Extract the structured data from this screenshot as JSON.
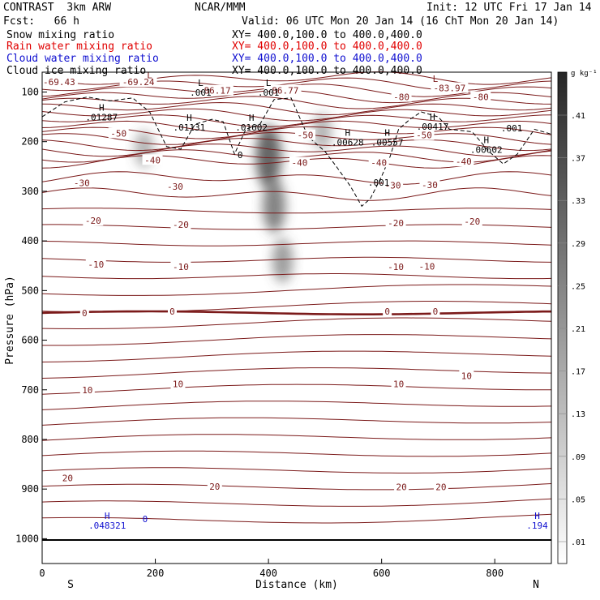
{
  "header": {
    "title": "CONTRAST  3km ARW",
    "center": "NCAR/MMM",
    "init": "Init: 12 UTC Fri 17 Jan 14",
    "fcst": "Fcst:   66 h",
    "valid": "Valid: 06 UTC Mon 20 Jan 14 (16 ChT Mon 20 Jan 14)",
    "fields": [
      {
        "label": "Snow mixing ratio",
        "xy": "XY= 400.0,100.0 to 400.0,400.0",
        "color": "#000000"
      },
      {
        "label": "Rain water mixing ratio",
        "xy": "XY= 400.0,100.0 to 400.0,400.0",
        "color": "#e00000"
      },
      {
        "label": "Cloud water mixing ratio",
        "xy": "XY= 400.0,100.0 to 400.0,400.0",
        "color": "#1010d0"
      },
      {
        "label": "Cloud ice mixing ratio",
        "xy": "XY= 400.0,100.0 to 400.0,400.0",
        "color": "#000000"
      }
    ]
  },
  "chart_data": {
    "type": "contour",
    "xlabel": "Distance (km)",
    "ylabel": "Pressure (hPa)",
    "xlim": [
      0,
      900
    ],
    "ylim": [
      1050,
      60
    ],
    "x_ticks": [
      0,
      200,
      400,
      600,
      800
    ],
    "y_ticks": [
      100,
      200,
      300,
      400,
      500,
      600,
      700,
      800,
      900,
      1000
    ],
    "x_end_labels": {
      "left": "S",
      "right": "N"
    },
    "colorbar": {
      "unit": "g kg⁻¹",
      "labels": [
        ".01",
        ".05",
        ".09",
        ".13",
        ".17",
        ".21",
        ".25",
        ".29",
        ".33",
        ".37",
        ".41"
      ]
    },
    "temperature_labels": [
      {
        "text": "-69.43",
        "x": 30,
        "p": 80
      },
      {
        "text": "-69.24",
        "x": 170,
        "p": 80
      },
      {
        "text": "-86.17",
        "x": 305,
        "p": 97
      },
      {
        "text": "-86.77",
        "x": 425,
        "p": 97
      },
      {
        "text": "-83.97",
        "x": 720,
        "p": 92
      },
      {
        "text": "-80",
        "x": 635,
        "p": 110
      },
      {
        "text": "-80",
        "x": 775,
        "p": 110
      },
      {
        "text": "-50",
        "x": 135,
        "p": 183
      },
      {
        "text": "-50",
        "x": 465,
        "p": 187
      },
      {
        "text": "-50",
        "x": 675,
        "p": 187
      },
      {
        "text": "-40",
        "x": 195,
        "p": 237
      },
      {
        "text": "-40",
        "x": 455,
        "p": 242
      },
      {
        "text": "-40",
        "x": 595,
        "p": 242
      },
      {
        "text": "-40",
        "x": 745,
        "p": 240
      },
      {
        "text": "-30",
        "x": 70,
        "p": 283
      },
      {
        "text": "-30",
        "x": 235,
        "p": 290
      },
      {
        "text": "-30",
        "x": 620,
        "p": 288
      },
      {
        "text": "-30",
        "x": 685,
        "p": 287
      },
      {
        "text": "-20",
        "x": 90,
        "p": 359
      },
      {
        "text": "-20",
        "x": 245,
        "p": 367
      },
      {
        "text": "-20",
        "x": 625,
        "p": 364
      },
      {
        "text": "-20",
        "x": 760,
        "p": 361
      },
      {
        "text": "-10",
        "x": 95,
        "p": 447
      },
      {
        "text": "-10",
        "x": 245,
        "p": 452
      },
      {
        "text": "-10",
        "x": 625,
        "p": 452
      },
      {
        "text": "-10",
        "x": 680,
        "p": 451
      },
      {
        "text": "0",
        "x": 75,
        "p": 545
      },
      {
        "text": "0",
        "x": 230,
        "p": 542
      },
      {
        "text": "0",
        "x": 610,
        "p": 542
      },
      {
        "text": "0",
        "x": 695,
        "p": 542
      },
      {
        "text": "10",
        "x": 80,
        "p": 700
      },
      {
        "text": "10",
        "x": 240,
        "p": 688
      },
      {
        "text": "10",
        "x": 630,
        "p": 688
      },
      {
        "text": "10",
        "x": 750,
        "p": 672
      },
      {
        "text": "20",
        "x": 45,
        "p": 878
      },
      {
        "text": "20",
        "x": 305,
        "p": 895
      },
      {
        "text": "20",
        "x": 635,
        "p": 896
      },
      {
        "text": "20",
        "x": 705,
        "p": 896
      }
    ],
    "extrema": [
      {
        "mark": "L",
        "x": 190,
        "p": 72,
        "value": "",
        "color": "#7b1a1a"
      },
      {
        "mark": "L",
        "x": 280,
        "p": 88,
        "value": ".001",
        "color": "#000000"
      },
      {
        "mark": "L",
        "x": 400,
        "p": 88,
        "value": ".001",
        "color": "#000000"
      },
      {
        "mark": "L",
        "x": 695,
        "p": 80,
        "value": "",
        "color": "#7b1a1a"
      },
      {
        "mark": "H",
        "x": 105,
        "p": 138,
        "value": ".01287",
        "color": "#000000"
      },
      {
        "mark": "H",
        "x": 260,
        "p": 158,
        "value": ".01131",
        "color": "#000000"
      },
      {
        "mark": "H",
        "x": 370,
        "p": 158,
        "value": ".01602",
        "color": "#000000"
      },
      {
        "mark": "H",
        "x": 540,
        "p": 188,
        "value": ".00628",
        "color": "#000000"
      },
      {
        "mark": "H",
        "x": 610,
        "p": 188,
        "value": ".00557",
        "color": "#000000"
      },
      {
        "mark": "H",
        "x": 690,
        "p": 156,
        "value": ".00417",
        "color": "#000000"
      },
      {
        "mark": "H",
        "x": 785,
        "p": 203,
        "value": ".00602",
        "color": "#000000"
      },
      {
        "mark": "",
        "x": 595,
        "p": 282,
        "value": ".001",
        "color": "#000000"
      },
      {
        "mark": "",
        "x": 830,
        "p": 173,
        "value": ".001",
        "color": "#000000"
      },
      {
        "mark": "",
        "x": 350,
        "p": 227,
        "value": "0",
        "color": "#000000"
      },
      {
        "mark": "H",
        "x": 115,
        "p": 960,
        "value": ".048321",
        "color": "#1010d0"
      },
      {
        "mark": "",
        "x": 182,
        "p": 960,
        "value": "0",
        "color": "#1010d0"
      },
      {
        "mark": "H",
        "x": 875,
        "p": 960,
        "value": ".194",
        "color": "#1010d0"
      }
    ],
    "snow_blobs": [
      {
        "x": 400,
        "p": 230,
        "intensity": 0.41
      },
      {
        "x": 410,
        "p": 330,
        "intensity": 0.3
      },
      {
        "x": 425,
        "p": 440,
        "intensity": 0.2
      },
      {
        "x": 180,
        "p": 215,
        "intensity": 0.12
      },
      {
        "x": 495,
        "p": 180,
        "intensity": 0.12
      }
    ]
  }
}
